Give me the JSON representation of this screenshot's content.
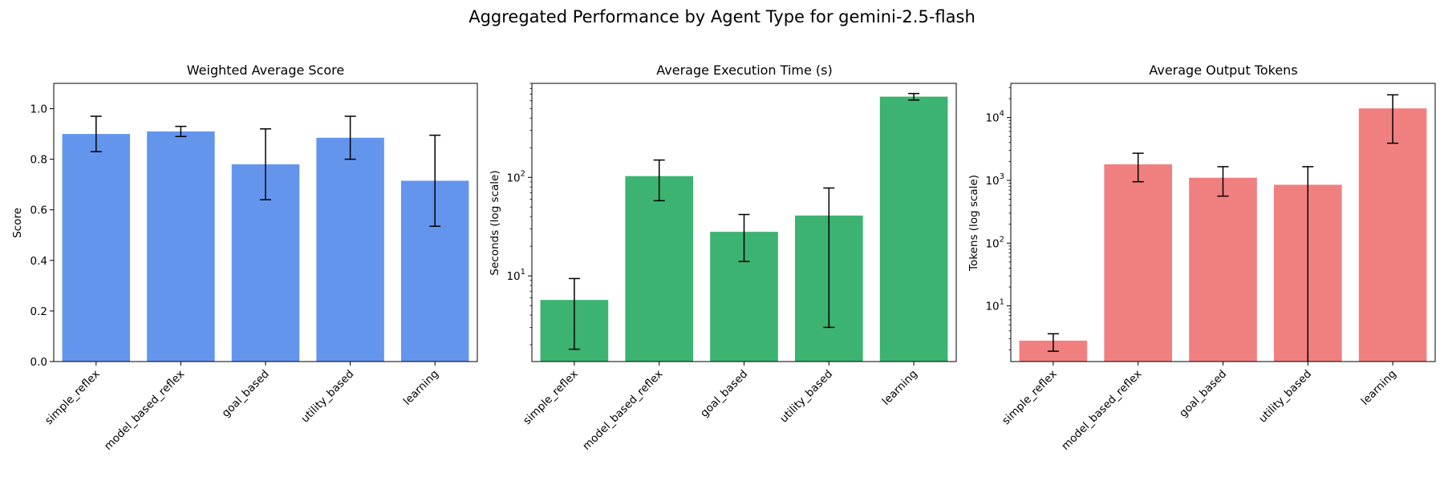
{
  "figure": {
    "title": "Aggregated Performance by Agent Type for gemini-2.5-flash"
  },
  "chart_data": [
    {
      "type": "bar",
      "title": "Weighted Average Score",
      "xlabel": "",
      "ylabel": "Score",
      "yscale": "linear",
      "ylim": [
        0,
        1.1
      ],
      "yticks": [
        "0.0",
        "0.2",
        "0.4",
        "0.6",
        "0.8",
        "1.0"
      ],
      "categories": [
        "simple_reflex",
        "model_based_reflex",
        "goal_based",
        "utility_based",
        "learning"
      ],
      "values": [
        0.9,
        0.91,
        0.78,
        0.885,
        0.715
      ],
      "error": [
        0.07,
        0.02,
        0.14,
        0.085,
        0.18
      ],
      "color": "#6495ED"
    },
    {
      "type": "bar",
      "title": "Average Execution Time (s)",
      "xlabel": "",
      "ylabel": "Seconds (log scale)",
      "yscale": "log",
      "ylim": [
        1.35,
        900
      ],
      "yticks": [
        {
          "base": "10",
          "exp": "1"
        },
        {
          "base": "10",
          "exp": "2"
        }
      ],
      "categories": [
        "simple_reflex",
        "model_based_reflex",
        "goal_based",
        "utility_based",
        "learning"
      ],
      "values": [
        5.7,
        103,
        28,
        41,
        660
      ],
      "error_low": [
        1.8,
        58,
        14,
        3,
        610
      ],
      "error_high": [
        9.4,
        150,
        42,
        78,
        710
      ],
      "color": "#3CB371"
    },
    {
      "type": "bar",
      "title": "Average Output Tokens",
      "xlabel": "",
      "ylabel": "Tokens (log scale)",
      "yscale": "log",
      "ylim": [
        1.3,
        35000
      ],
      "yticks": [
        {
          "base": "10",
          "exp": "1"
        },
        {
          "base": "10",
          "exp": "2"
        },
        {
          "base": "10",
          "exp": "3"
        },
        {
          "base": "10",
          "exp": "4"
        }
      ],
      "categories": [
        "simple_reflex",
        "model_based_reflex",
        "goal_based",
        "utility_based",
        "learning"
      ],
      "values": [
        2.8,
        1800,
        1100,
        850,
        14000
      ],
      "error_low": [
        1.9,
        950,
        560,
        0.5,
        3900
      ],
      "error_high": [
        3.6,
        2700,
        1650,
        1650,
        23000
      ],
      "color": "#F08080"
    }
  ]
}
